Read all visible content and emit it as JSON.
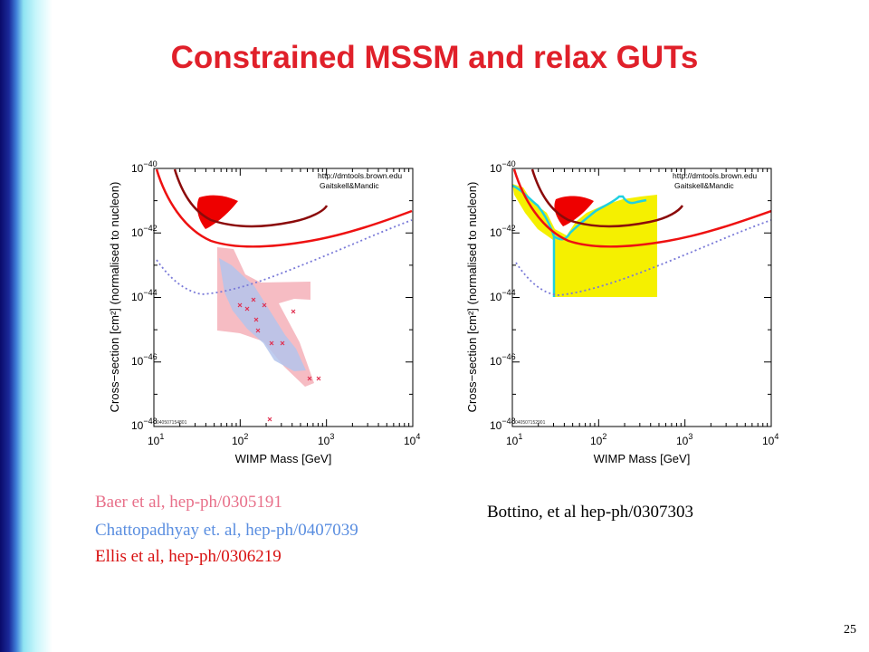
{
  "slide": {
    "title": "Constrained MSSM and relax GUTs",
    "page_number": "25",
    "colors": {
      "title": "#e0202a",
      "baer": "#e8708a",
      "chattopadhyay": "#5a8ee0",
      "ellis": "#d81010"
    }
  },
  "citations_left": [
    {
      "text": "Baer et al, hep-ph/0305191",
      "color": "#e8708a"
    },
    {
      "text": "Chattopadhyay et. al, hep-ph/0407039",
      "color": "#5a8ee0"
    },
    {
      "text": "Ellis et al, hep-ph/0306219",
      "color": "#d81010"
    }
  ],
  "citation_right": "Bottino, et al hep-ph/0307303",
  "plots": {
    "common": {
      "xlabel": "WIMP Mass [GeV]",
      "ylabel": "Cross−section [cm²] (normalised to nucleon)",
      "x_ticks": [
        {
          "base": "10",
          "exp": "1",
          "value": 10
        },
        {
          "base": "10",
          "exp": "2",
          "value": 100
        },
        {
          "base": "10",
          "exp": "3",
          "value": 1000
        },
        {
          "base": "10",
          "exp": "4",
          "value": 10000
        }
      ],
      "y_ticks": [
        {
          "base": "10",
          "exp": "−40",
          "value": -40
        },
        {
          "base": "10",
          "exp": "−42",
          "value": -42
        },
        {
          "base": "10",
          "exp": "−44",
          "value": -44
        },
        {
          "base": "10",
          "exp": "−46",
          "value": -46
        },
        {
          "base": "10",
          "exp": "−48",
          "value": -48
        }
      ],
      "credit_line1": "http://dmtools.brown.edu",
      "credit_line2": "Gaitskell&Mandic"
    },
    "left": {
      "stamp": "040507154801"
    },
    "right": {
      "stamp": "040507152901"
    }
  }
}
